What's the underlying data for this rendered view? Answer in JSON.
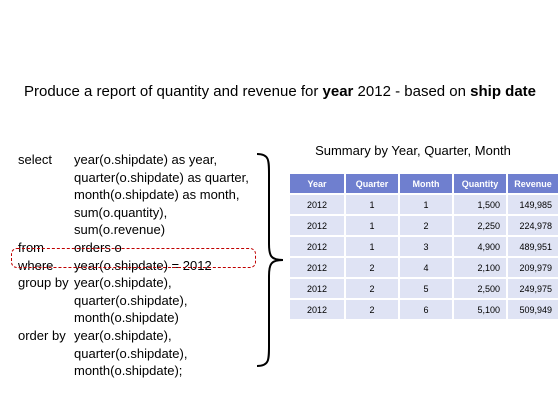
{
  "heading": {
    "pre": "Produce a report of quantity and revenue for ",
    "bold1": "year",
    "mid": " 2012 - based on ",
    "bold2": "ship date"
  },
  "sql": [
    {
      "kw": "select",
      "text": "year(o.shipdate) as year,"
    },
    {
      "kw": "",
      "text": "quarter(o.shipdate) as quarter,"
    },
    {
      "kw": "",
      "text": "month(o.shipdate) as month,"
    },
    {
      "kw": "",
      "text": "sum(o.quantity),"
    },
    {
      "kw": "",
      "text": "sum(o.revenue)"
    },
    {
      "kw": "from",
      "text": "orders o"
    },
    {
      "kw": "where",
      "text": "year(o.shipdate) = 2012"
    },
    {
      "kw": "group by",
      "text": "year(o.shipdate),"
    },
    {
      "kw": "",
      "text": "quarter(o.shipdate),"
    },
    {
      "kw": "",
      "text": "month(o.shipdate)"
    },
    {
      "kw": "order by",
      "text": "year(o.shipdate),"
    },
    {
      "kw": "",
      "text": "quarter(o.shipdate),"
    },
    {
      "kw": "",
      "text": "month(o.shipdate);"
    }
  ],
  "table": {
    "caption": "Summary by Year, Quarter, Month",
    "headers": [
      "Year",
      "Quarter",
      "Month",
      "Quantity",
      "Revenue"
    ],
    "rows": [
      [
        "2012",
        "1",
        "1",
        "1,500",
        "149,985"
      ],
      [
        "2012",
        "1",
        "2",
        "2,250",
        "224,978"
      ],
      [
        "2012",
        "1",
        "3",
        "4,900",
        "489,951"
      ],
      [
        "2012",
        "2",
        "4",
        "2,100",
        "209,979"
      ],
      [
        "2012",
        "2",
        "5",
        "2,500",
        "249,975"
      ],
      [
        "2012",
        "2",
        "6",
        "5,100",
        "509,949"
      ]
    ]
  },
  "colors": {
    "header_bg": "#6f7fcf",
    "cell_bg": "#dfe3f4",
    "highlight": "#c00000"
  }
}
